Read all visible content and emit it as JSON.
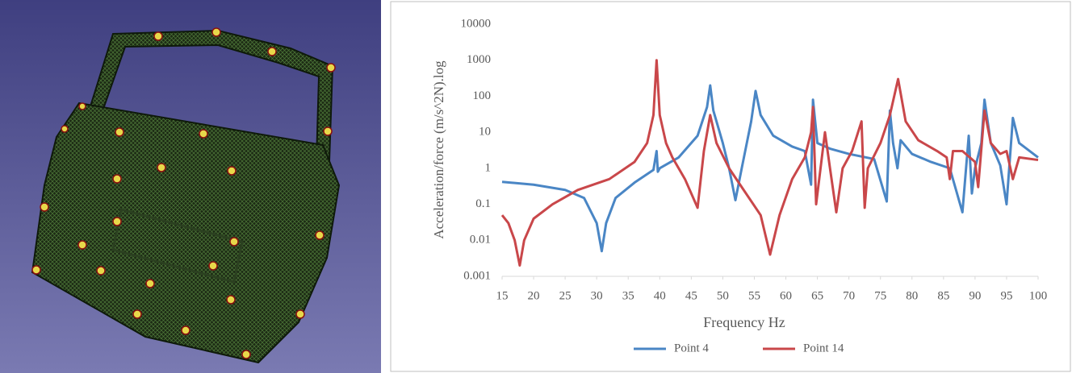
{
  "chart_data": {
    "type": "line",
    "xlabel": "Frequency Hz",
    "ylabel": "Acceleration/force (m/s^2N).log",
    "xlim": [
      15,
      100
    ],
    "xticks": [
      15,
      20,
      25,
      30,
      35,
      40,
      45,
      50,
      55,
      60,
      65,
      70,
      75,
      80,
      85,
      90,
      95,
      100
    ],
    "ylim": [
      0.001,
      10000
    ],
    "yticks": [
      0.001,
      0.01,
      0.1,
      1,
      10,
      100,
      1000,
      10000
    ],
    "yscale": "log",
    "grid": false,
    "legend": "bottom",
    "series": [
      {
        "name": "Point 4",
        "color": "#4a86c5",
        "x": [
          15,
          20,
          25,
          28,
          30,
          30.8,
          31.5,
          33,
          36,
          39,
          39.5,
          39.7,
          40,
          43,
          46,
          47.5,
          48,
          48.5,
          50,
          51,
          52,
          53,
          54.5,
          55.2,
          56,
          58,
          61,
          63,
          64,
          64.3,
          65,
          67,
          70,
          74,
          76,
          76.5,
          77,
          77.7,
          78.2,
          80,
          83,
          86,
          88,
          89,
          89.5,
          90,
          91,
          91.5,
          92.5,
          94,
          95,
          96,
          97,
          100
        ],
        "values": [
          0.42,
          0.35,
          0.25,
          0.15,
          0.03,
          0.005,
          0.03,
          0.15,
          0.4,
          0.9,
          3,
          0.8,
          1.0,
          2,
          8,
          50,
          200,
          40,
          5,
          1,
          0.13,
          1,
          20,
          140,
          30,
          8,
          4,
          3,
          0.35,
          80,
          5,
          3.5,
          2.5,
          1.8,
          0.12,
          40,
          5,
          1,
          6,
          2.5,
          1.5,
          1,
          0.06,
          8,
          0.2,
          1,
          5,
          80,
          5,
          1.2,
          0.1,
          25,
          5,
          2
        ]
      },
      {
        "name": "Point 14",
        "color": "#c9474a",
        "x": [
          15,
          16,
          17,
          17.8,
          18.5,
          20,
          23,
          27,
          32,
          36,
          38,
          39,
          39.5,
          40,
          41,
          42,
          44,
          46,
          47,
          48,
          49,
          51,
          53,
          56,
          57.5,
          59,
          61,
          63,
          64,
          64.3,
          64.8,
          66.2,
          67,
          68,
          69,
          70.5,
          72,
          72.5,
          73,
          75,
          76.5,
          77.8,
          79,
          81,
          84,
          85.5,
          86,
          86.5,
          88,
          90,
          90.5,
          91.5,
          92.5,
          94,
          95,
          96,
          97,
          100
        ],
        "values": [
          0.05,
          0.03,
          0.01,
          0.002,
          0.01,
          0.04,
          0.1,
          0.25,
          0.5,
          1.5,
          5,
          30,
          1000,
          30,
          5,
          2,
          0.5,
          0.08,
          3,
          30,
          5,
          1,
          0.3,
          0.05,
          0.004,
          0.05,
          0.5,
          2,
          10,
          50,
          0.1,
          10,
          1,
          0.06,
          1,
          3,
          20,
          0.08,
          1,
          5,
          30,
          300,
          20,
          6,
          3,
          2,
          0.5,
          3,
          3,
          1.5,
          0.3,
          40,
          5,
          2.5,
          3,
          0.5,
          2,
          1.7
        ]
      }
    ]
  }
}
